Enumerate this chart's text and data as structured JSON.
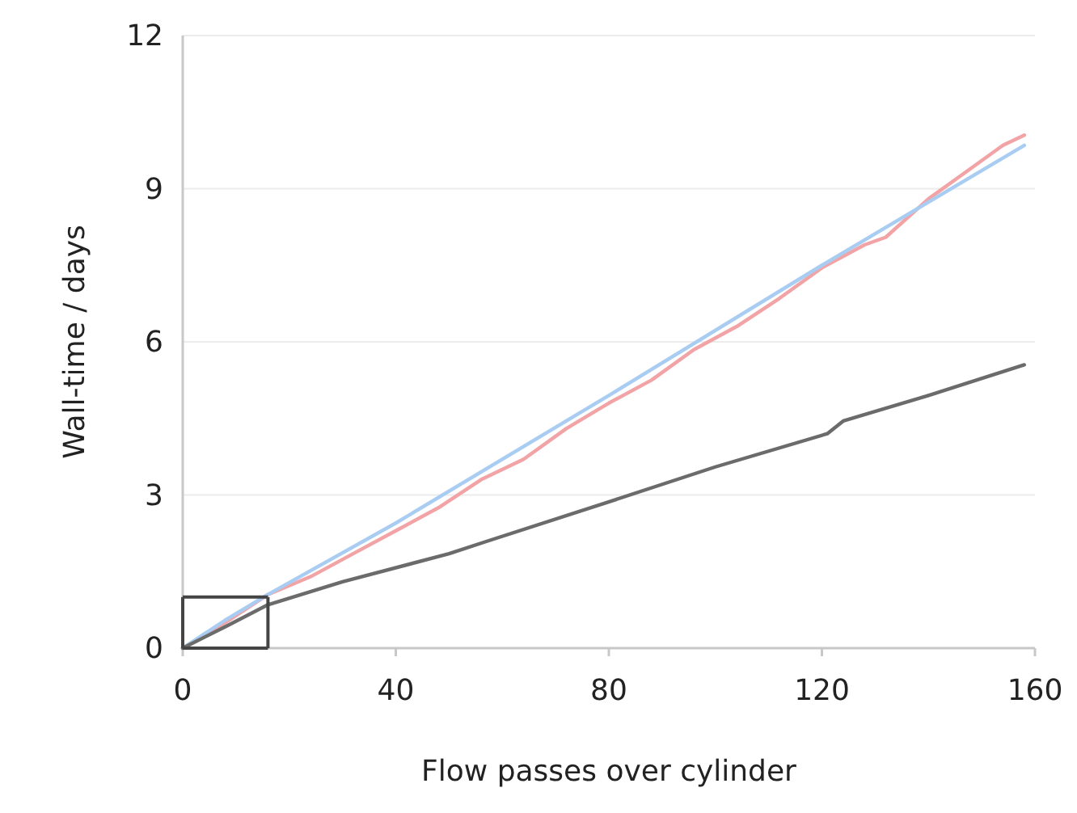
{
  "chart_data": {
    "type": "line",
    "xlabel": "Flow passes over cylinder",
    "ylabel": "Wall-time / days",
    "xlim": [
      0,
      160
    ],
    "ylim": [
      0,
      12
    ],
    "xticks": [
      0,
      40,
      80,
      120,
      160
    ],
    "yticks": [
      0,
      3,
      6,
      9,
      12
    ],
    "grid": "y",
    "line_style": "solid",
    "marker": "none",
    "series": [
      {
        "color": "#f2a3a6",
        "x": [
          0,
          8,
          16,
          24,
          32,
          40,
          48,
          56,
          64,
          72,
          80,
          88,
          96,
          104,
          112,
          120,
          128,
          132,
          140,
          148,
          154,
          158
        ],
        "values": [
          0,
          0.5,
          1.05,
          1.4,
          1.85,
          2.3,
          2.75,
          3.3,
          3.7,
          4.3,
          4.8,
          5.25,
          5.85,
          6.3,
          6.85,
          7.45,
          7.9,
          8.05,
          8.8,
          9.4,
          9.85,
          10.05
        ]
      },
      {
        "color": "#a9cdf2",
        "x": [
          0,
          8,
          16,
          40,
          80,
          120,
          158
        ],
        "values": [
          0,
          0.55,
          1.05,
          2.45,
          4.95,
          7.5,
          9.85
        ]
      },
      {
        "color": "#6b6b6b",
        "x": [
          0,
          8,
          16,
          30,
          50,
          57,
          81,
          100,
          121,
          124,
          140,
          158
        ],
        "values": [
          0,
          0.42,
          0.85,
          1.3,
          1.85,
          2.09,
          2.9,
          3.55,
          4.2,
          4.45,
          4.95,
          5.55
        ]
      }
    ]
  }
}
